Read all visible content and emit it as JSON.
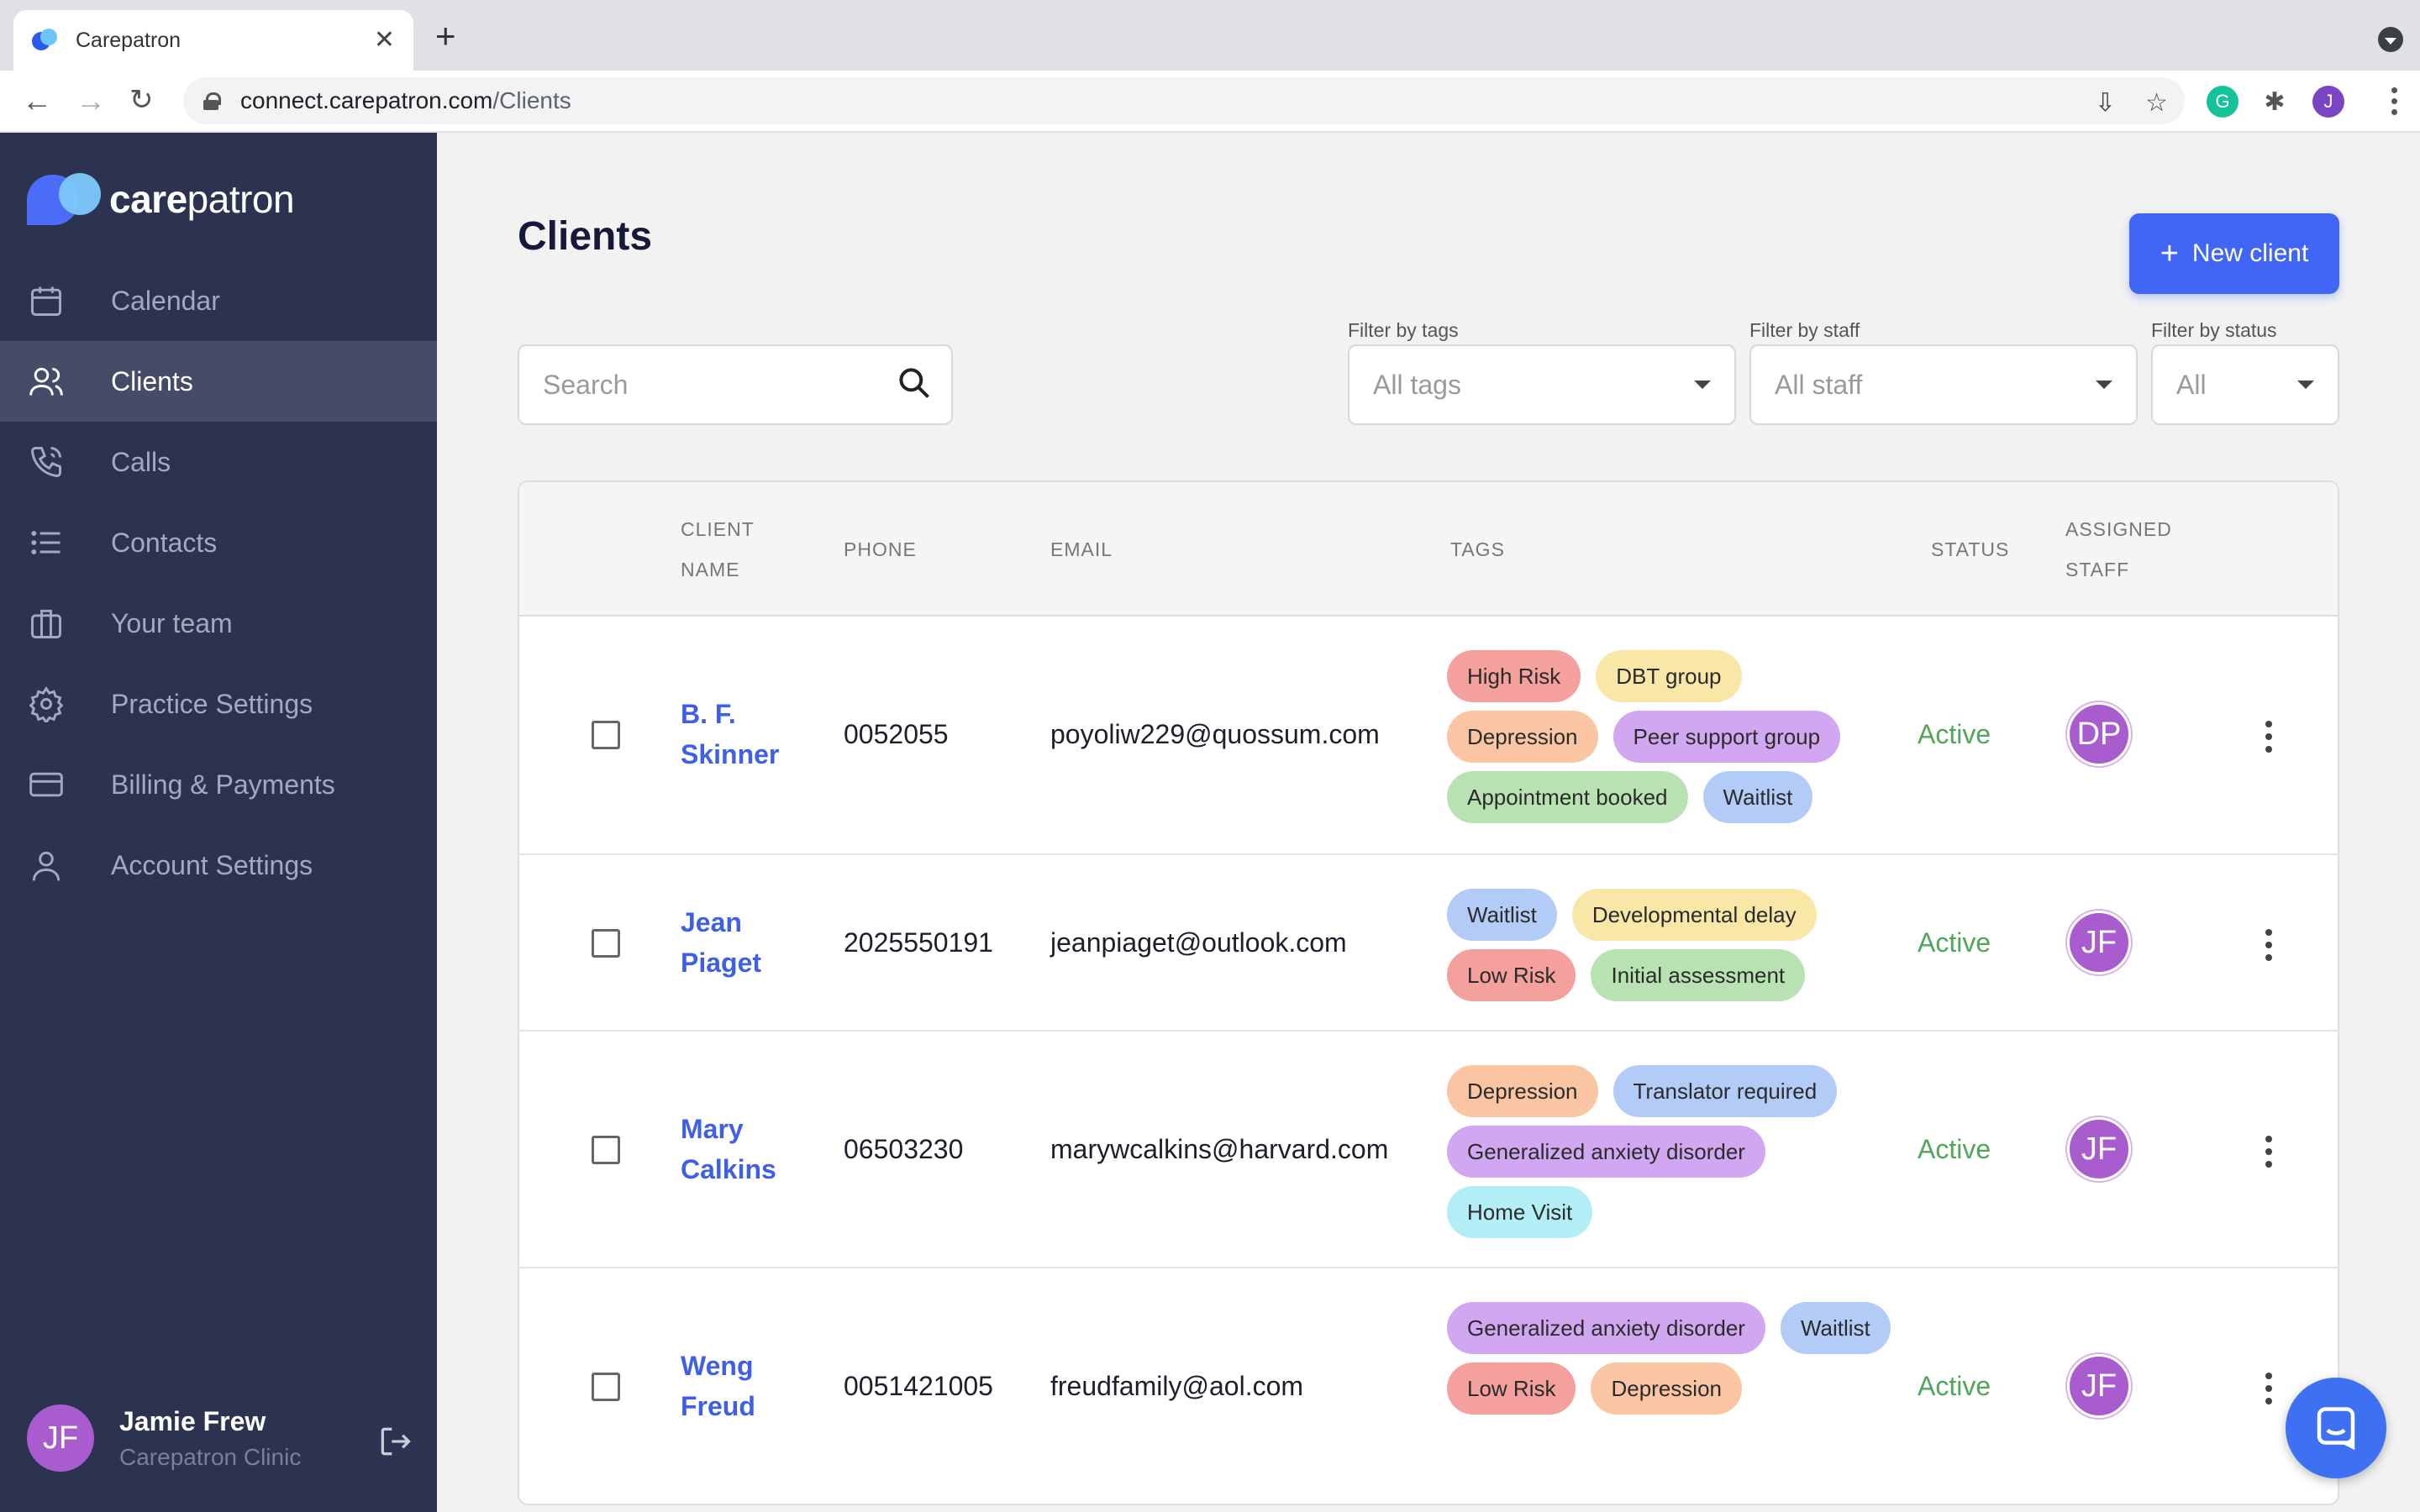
{
  "browser": {
    "tab_title": "Carepatron",
    "url_host": "connect.carepatron.com",
    "url_path": "/Clients",
    "profile_initial": "J",
    "grammarly_initial": "G"
  },
  "sidebar": {
    "logo": {
      "care": "care",
      "patron": "patron"
    },
    "items": [
      {
        "label": "Calendar",
        "icon": "calendar-icon",
        "active": false
      },
      {
        "label": "Clients",
        "icon": "users-icon",
        "active": true
      },
      {
        "label": "Calls",
        "icon": "phone-icon",
        "active": false
      },
      {
        "label": "Contacts",
        "icon": "list-icon",
        "active": false
      },
      {
        "label": "Your team",
        "icon": "briefcase-icon",
        "active": false
      },
      {
        "label": "Practice Settings",
        "icon": "gear-icon",
        "active": false
      },
      {
        "label": "Billing & Payments",
        "icon": "credit-card-icon",
        "active": false
      },
      {
        "label": "Account Settings",
        "icon": "person-icon",
        "active": false
      }
    ],
    "user": {
      "initials": "JF",
      "name": "Jamie Frew",
      "org": "Carepatron Clinic"
    }
  },
  "main": {
    "title": "Clients",
    "new_client_label": "New client",
    "search_placeholder": "Search",
    "filters": {
      "tags": {
        "label": "Filter by tags",
        "value": "All tags"
      },
      "staff": {
        "label": "Filter by staff",
        "value": "All staff"
      },
      "status": {
        "label": "Filter by status",
        "value": "All"
      }
    },
    "columns": {
      "client_name": [
        "CLIENT",
        "NAME"
      ],
      "phone": "PHONE",
      "email": "EMAIL",
      "tags": "TAGS",
      "status": "STATUS",
      "assigned_staff": [
        "ASSIGNED",
        "STAFF"
      ]
    },
    "clients": [
      {
        "name": [
          "B. F.",
          "Skinner"
        ],
        "phone": "0052055",
        "email": "poyoliw229@quossum.com",
        "tags": [
          {
            "label": "High Risk",
            "color": "#f4a09c"
          },
          {
            "label": "DBT group",
            "color": "#f8e7a6"
          },
          {
            "label": "Depression",
            "color": "#f9c5a2"
          },
          {
            "label": "Peer support group",
            "color": "#d1a7f1"
          },
          {
            "label": "Appointment booked",
            "color": "#b9e2b3"
          },
          {
            "label": "Waitlist",
            "color": "#b3cbf7"
          }
        ],
        "status": "Active",
        "staff": "DP"
      },
      {
        "name": [
          "Jean",
          "Piaget"
        ],
        "phone": "2025550191",
        "email": "jeanpiaget@outlook.com",
        "tags": [
          {
            "label": "Waitlist",
            "color": "#b3cbf7"
          },
          {
            "label": "Developmental delay",
            "color": "#f8e7a6"
          },
          {
            "label": "Low Risk",
            "color": "#f4a09c"
          },
          {
            "label": "Initial assessment",
            "color": "#b9e2b3"
          }
        ],
        "status": "Active",
        "staff": "JF"
      },
      {
        "name": [
          "Mary",
          "Calkins"
        ],
        "phone": "06503230",
        "email": "marywcalkins@harvard.com",
        "tags": [
          {
            "label": "Depression",
            "color": "#f9c5a2"
          },
          {
            "label": "Translator required",
            "color": "#b3cbf7"
          },
          {
            "label": "Generalized anxiety disorder",
            "color": "#d1a7f1"
          },
          {
            "label": "Home Visit",
            "color": "#b3eef7"
          }
        ],
        "status": "Active",
        "staff": "JF"
      },
      {
        "name": [
          "Weng",
          "Freud"
        ],
        "phone": "0051421005",
        "email": "freudfamily@aol.com",
        "tags": [
          {
            "label": "Generalized anxiety disorder",
            "color": "#d1a7f1"
          },
          {
            "label": "Waitlist",
            "color": "#b3cbf7"
          },
          {
            "label": "Low Risk",
            "color": "#f4a09c"
          },
          {
            "label": "Depression",
            "color": "#f9c5a2"
          }
        ],
        "status": "Active",
        "staff": "JF"
      }
    ]
  },
  "colors": {
    "sidebar_bg": "#2c3351",
    "accent": "#4166f5",
    "status_active": "#52a65a",
    "avatar": "#a95ccd"
  }
}
